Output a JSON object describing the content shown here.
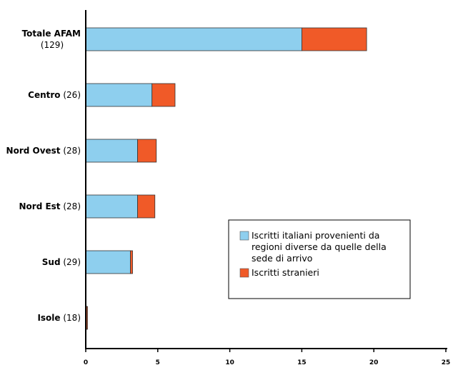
{
  "chart_data": {
    "type": "bar",
    "orientation": "horizontal",
    "stacked": true,
    "categories": [
      {
        "name": "Totale AFAM",
        "count": "(129)"
      },
      {
        "name": "Centro",
        "count": "(26)"
      },
      {
        "name": "Nord Ovest",
        "count": "(28)"
      },
      {
        "name": "Nord Est",
        "count": "(28)"
      },
      {
        "name": "Sud",
        "count": "(29)"
      },
      {
        "name": "Isole",
        "count": "(18)"
      }
    ],
    "series": [
      {
        "name": "Iscritti italiani provenienti da regioni diverse da quelle della sede di arrivo",
        "legend_lines": [
          "Iscritti italiani provenienti da",
          "regioni diverse da quelle della",
          "sede di arrivo"
        ],
        "color": "#8ecfee",
        "values": [
          15.0,
          4.6,
          3.6,
          3.6,
          3.1,
          0.05
        ]
      },
      {
        "name": "Iscritti stranieri",
        "legend_lines": [
          "Iscritti stranieri"
        ],
        "color": "#f05a28",
        "values": [
          4.5,
          1.6,
          1.3,
          1.2,
          0.15,
          0.05
        ]
      }
    ],
    "xlim": [
      0,
      25
    ],
    "xticks": [
      "0",
      "5",
      "10",
      "15",
      "20",
      "25"
    ],
    "grid": false,
    "legend_position": "bottom-right"
  }
}
